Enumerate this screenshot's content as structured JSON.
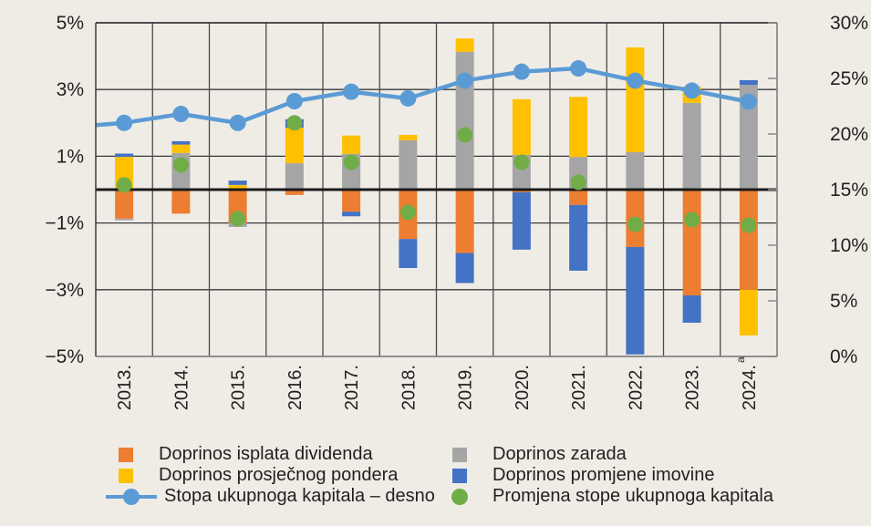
{
  "chart_data": {
    "type": "bar",
    "subtype": "stacked bar with line and scatter overlay (dual axis)",
    "title": "",
    "categories": [
      "2013.",
      "2014.",
      "2015.",
      "2016.",
      "2017.",
      "2018.",
      "2019.",
      "2020.",
      "2021.",
      "2022.",
      "2023.",
      "2024."
    ],
    "category_superscripts": {
      "2024.": "a"
    },
    "y_left": {
      "range": [
        -5,
        5
      ],
      "ticks": [
        5,
        3,
        1,
        -1,
        -3,
        -5
      ],
      "tick_labels": [
        "5%",
        "3%",
        "1%",
        "−1%",
        "−3%",
        "−5%"
      ]
    },
    "y_right": {
      "range": [
        0,
        30
      ],
      "ticks": [
        30,
        25,
        20,
        15,
        10,
        5,
        0
      ],
      "tick_labels": [
        "30%",
        "25%",
        "20%",
        "15%",
        "10%",
        "5%",
        "0%"
      ]
    },
    "grid": true,
    "legend_position": "bottom",
    "series": [
      {
        "name": "Doprinos isplata dividenda",
        "kind": "bar",
        "axis": "left",
        "color": "#ed7d31",
        "values": [
          -0.87,
          -0.72,
          -1.0,
          -0.16,
          -0.66,
          -1.48,
          -1.9,
          -0.08,
          -0.46,
          -1.72,
          -3.17,
          -3.0
        ]
      },
      {
        "name": "Doprinos zarada",
        "kind": "bar",
        "axis": "left",
        "color": "#a5a5a5",
        "values": [
          -0.05,
          1.1,
          -0.12,
          0.79,
          1.07,
          1.48,
          4.13,
          1.04,
          0.98,
          1.12,
          2.6,
          3.14
        ]
      },
      {
        "name": "Doprinos prosječnog pondera",
        "kind": "bar",
        "axis": "left",
        "color": "#ffc000",
        "values": [
          0.98,
          0.25,
          0.14,
          1.07,
          0.55,
          0.16,
          0.4,
          1.67,
          1.8,
          3.14,
          0.49,
          -1.37
        ]
      },
      {
        "name": "Doprinos promjene imovine",
        "kind": "bar",
        "axis": "left",
        "color": "#4472c4",
        "values": [
          0.1,
          0.1,
          0.13,
          0.25,
          -0.14,
          -0.87,
          -0.9,
          -1.72,
          -1.97,
          -3.22,
          -0.82,
          0.14
        ]
      },
      {
        "name": "Stopa ukupnoga kapitala – desno",
        "kind": "line",
        "axis": "right",
        "color": "#5b9bd5",
        "values": [
          21.0,
          21.8,
          21.0,
          22.95,
          23.8,
          23.2,
          24.8,
          25.6,
          25.9,
          24.8,
          23.9,
          22.9
        ]
      },
      {
        "name": "Promjena stope ukupnoga kapitala",
        "kind": "scatter",
        "axis": "left",
        "color": "#70ad47",
        "values": [
          0.14,
          0.74,
          -0.87,
          2.0,
          0.82,
          -0.68,
          1.64,
          0.82,
          0.22,
          -1.04,
          -0.9,
          -1.07
        ]
      }
    ],
    "legend": [
      {
        "label": "Doprinos isplata dividenda",
        "marker": "square",
        "color": "#ed7d31"
      },
      {
        "label": "Doprinos prosječnog pondera",
        "marker": "square",
        "color": "#ffc000"
      },
      {
        "label": "Stopa ukupnoga kapitala – desno",
        "marker": "line-circle",
        "color": "#5b9bd5"
      },
      {
        "label": "Doprinos zarada",
        "marker": "square",
        "color": "#a5a5a5"
      },
      {
        "label": "Doprinos promjene imovine",
        "marker": "square",
        "color": "#4472c4"
      },
      {
        "label": "Promjena stope ukupnoga kapitala",
        "marker": "circle",
        "color": "#70ad47"
      }
    ]
  }
}
